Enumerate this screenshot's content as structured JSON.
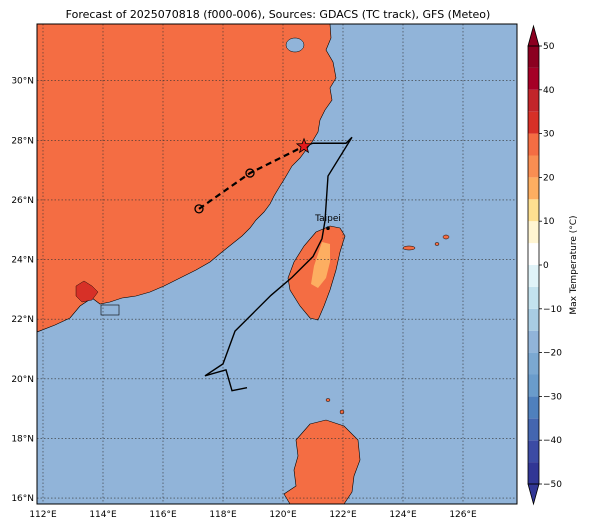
{
  "title": "Forecast of 2025070818 (f000-006), Sources: GDACS (TC track), GFS (Meteo)",
  "map": {
    "lon_range": [
      111.8,
      127.8
    ],
    "lat_range": [
      15.8,
      31.9
    ],
    "lon_ticks": [
      112,
      114,
      116,
      118,
      120,
      122,
      124,
      126
    ],
    "lat_ticks": [
      16,
      18,
      20,
      22,
      24,
      26,
      28,
      30
    ],
    "lon_tick_labels": [
      "112°E",
      "114°E",
      "116°E",
      "118°E",
      "120°E",
      "122°E",
      "124°E",
      "126°E"
    ],
    "lat_tick_labels": [
      "16°N",
      "18°N",
      "20°N",
      "22°N",
      "24°N",
      "26°N",
      "28°N",
      "30°N"
    ],
    "grid": true,
    "colors": {
      "ocean": "#91b4d9",
      "land": "#f46d43",
      "warm_inland": "#fdae61",
      "hot_spot": "#d73027",
      "track": "#000000",
      "marker": "#e31a1c"
    }
  },
  "city": {
    "name": "Taipei",
    "lon": 121.5,
    "lat": 25.05
  },
  "tc_track": {
    "forecast_points": [
      {
        "lon": 117.2,
        "lat": 25.7,
        "marker": "circle"
      },
      {
        "lon": 118.9,
        "lat": 26.9,
        "marker": "circle"
      },
      {
        "lon": 120.7,
        "lat": 27.8,
        "marker": "star"
      }
    ],
    "observed_path": [
      [
        118.3,
        19.6
      ],
      [
        118.8,
        19.7
      ],
      [
        118.3,
        19.6
      ],
      [
        118.1,
        20.3
      ],
      [
        117.4,
        20.1
      ],
      [
        118.0,
        20.5
      ],
      [
        118.4,
        21.6
      ],
      [
        119.0,
        22.2
      ],
      [
        119.6,
        22.8
      ],
      [
        120.3,
        23.4
      ],
      [
        121.0,
        24.1
      ],
      [
        121.3,
        24.7
      ],
      [
        121.4,
        25.3
      ],
      [
        121.5,
        26.8
      ],
      [
        122.3,
        28.1
      ],
      [
        122.1,
        27.9
      ],
      [
        121.6,
        27.9
      ],
      [
        121.0,
        27.9
      ],
      [
        120.7,
        27.8
      ]
    ]
  },
  "colorbar": {
    "label": "Max Temperature (°C)",
    "ticks": [
      -50,
      -40,
      -30,
      -20,
      -10,
      0,
      10,
      20,
      30,
      40,
      50
    ],
    "tick_labels": [
      "−50",
      "−40",
      "−30",
      "−20",
      "−10",
      "0",
      "10",
      "20",
      "30",
      "40",
      "50"
    ],
    "levels": [
      {
        "from": -50,
        "to": -45,
        "color": "#313695"
      },
      {
        "from": -45,
        "to": -40,
        "color": "#3c4ba4"
      },
      {
        "from": -40,
        "to": -35,
        "color": "#4466b0"
      },
      {
        "from": -35,
        "to": -30,
        "color": "#4f80bd"
      },
      {
        "from": -30,
        "to": -25,
        "color": "#6a9ccb"
      },
      {
        "from": -25,
        "to": -20,
        "color": "#7ba8d1"
      },
      {
        "from": -20,
        "to": -15,
        "color": "#91b4d9"
      },
      {
        "from": -15,
        "to": -10,
        "color": "#a8cde3"
      },
      {
        "from": -10,
        "to": -5,
        "color": "#c3e2ee"
      },
      {
        "from": -5,
        "to": 0,
        "color": "#e0f3f8"
      },
      {
        "from": 0,
        "to": 5,
        "color": "#ffffff"
      },
      {
        "from": 5,
        "to": 10,
        "color": "#fff5d2"
      },
      {
        "from": 10,
        "to": 15,
        "color": "#fee090"
      },
      {
        "from": 15,
        "to": 20,
        "color": "#fdae61"
      },
      {
        "from": 20,
        "to": 25,
        "color": "#f98e52"
      },
      {
        "from": 25,
        "to": 30,
        "color": "#f46d43"
      },
      {
        "from": 30,
        "to": 35,
        "color": "#d73027"
      },
      {
        "from": 35,
        "to": 40,
        "color": "#c2252a"
      },
      {
        "from": 40,
        "to": 45,
        "color": "#a50026"
      },
      {
        "from": 45,
        "to": 50,
        "color": "#8b0020"
      }
    ]
  }
}
